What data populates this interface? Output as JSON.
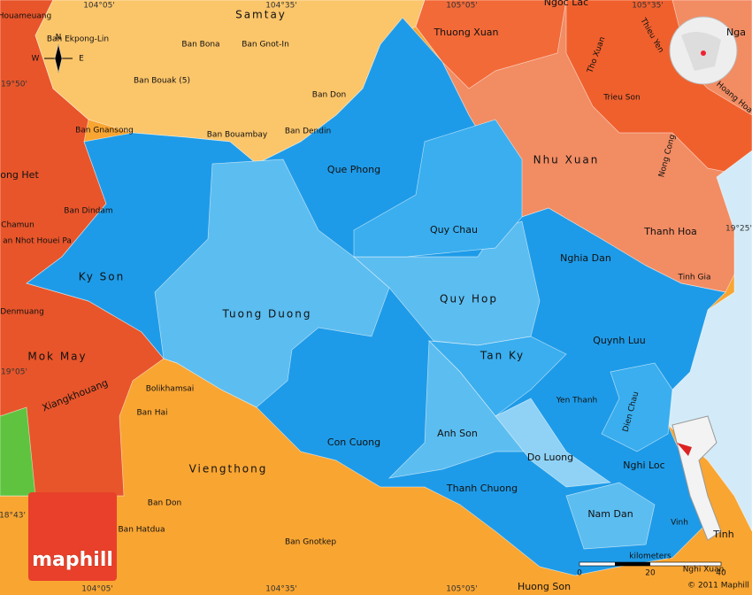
{
  "map": {
    "labels": [
      "Houameuang",
      "Samtay",
      "Ban Ekpong-Lin",
      "Ban Bona",
      "Ban Gnot-In",
      "Ban Bouak (5)",
      "Ban Don",
      "Ban Gnansong",
      "Ban Bouambay",
      "Ban Dendin",
      "Que Phong",
      "ong Het",
      "Ban Dindam",
      "Chamun",
      "an Nhot Houei Pa",
      "Ky Son",
      "Tuong Duong",
      "Quy Chau",
      "Nghia Dan",
      "Quy Hop",
      "Denmuang",
      "Mok May",
      "Tan Ky",
      "Quynh Luu",
      "Bolikhamsai",
      "Xiangkhouang",
      "Ban Hai",
      "Yen Thanh",
      "Dien Chau",
      "Anh Son",
      "Con Cuong",
      "Do Luong",
      "Nghi Loc",
      "Viengthong",
      "Thanh Chuong",
      "Ban Don",
      "Nam Dan",
      "Ban Hatdua",
      "Ban Gnotkep",
      "Vinh",
      "Tinh",
      "Huong Son",
      "Thuong Xuan",
      "Ngoc Lac",
      "Thieu Yen",
      "Nga",
      "Tho Xuan",
      "Trieu Son",
      "Hoang Hoa",
      "Nhu Xuan",
      "Nong Cong",
      "Thanh Hoa",
      "Tinh Gia",
      "Nghi Xuan"
    ],
    "graticule": [
      "104°05'",
      "104°35'",
      "105°05'",
      "105°35'",
      "104°05'",
      "104°35'",
      "105°05'",
      "19°50'",
      "19°05'",
      "18°43'",
      "19°25'"
    ],
    "compass": [
      "N",
      "W",
      "E"
    ],
    "scale": {
      "unit": "kilometers",
      "ticks": [
        "0",
        "20",
        "40"
      ]
    },
    "logo": "maphill",
    "copyright": "© 2011 Maphill"
  }
}
